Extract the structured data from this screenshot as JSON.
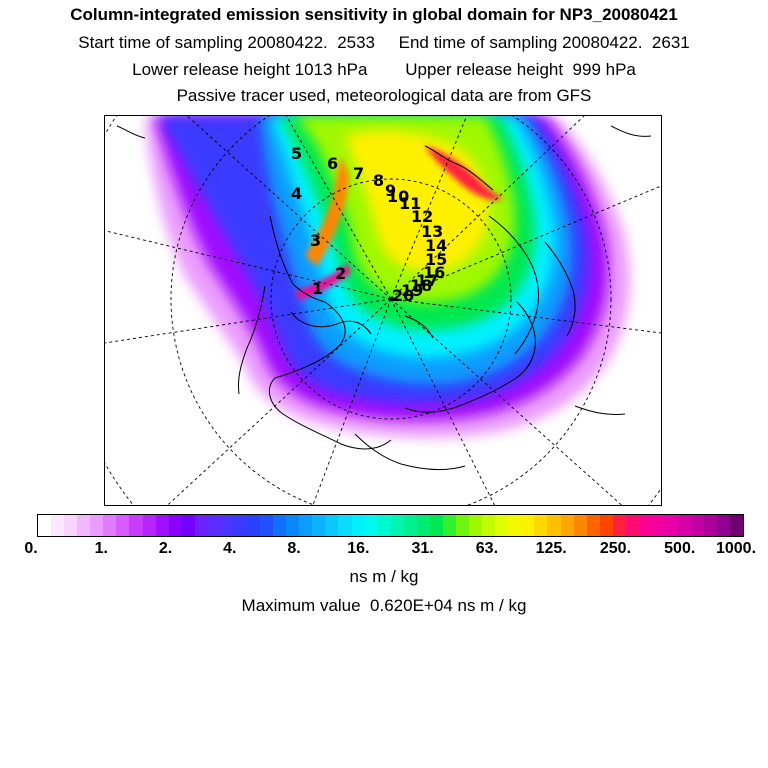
{
  "title": "Column-integrated emission sensitivity in global domain for NP3_20080421",
  "sampling": {
    "start_label": "Start time of sampling",
    "start_value": "20080422.  2533",
    "end_label": "End time of sampling",
    "end_value": "20080422.  2631"
  },
  "release": {
    "lower_label": "Lower release height",
    "lower_value": "1013 hPa",
    "upper_label": "Upper release height",
    "upper_value": "999 hPa"
  },
  "tracer_note": "Passive tracer used, meteorological data are from GFS",
  "colorbar": {
    "tick_labels": [
      "0.",
      "1.",
      "2.",
      "4.",
      "8.",
      "16.",
      "31.",
      "63.",
      "125.",
      "250.",
      "500.",
      "1000."
    ],
    "colors": [
      "#ffffff",
      "#fce8ff",
      "#f8d4ff",
      "#f2b8ff",
      "#eb9cff",
      "#e27cff",
      "#d85cff",
      "#c93cff",
      "#b824ff",
      "#a010ff",
      "#8a00ff",
      "#7400ff",
      "#6a20ff",
      "#5a2cff",
      "#4a34ff",
      "#3a3aff",
      "#2a40ff",
      "#2050ff",
      "#1070ff",
      "#0a86ff",
      "#0a9cff",
      "#0ab2ff",
      "#0ac8ff",
      "#0adcff",
      "#00f0ff",
      "#00f8ee",
      "#00f8d0",
      "#00f4b0",
      "#00f090",
      "#00ec70",
      "#00e850",
      "#30f030",
      "#70f410",
      "#a0f800",
      "#c4fa00",
      "#e0fc00",
      "#f2f800",
      "#fff000",
      "#ffd800",
      "#ffc000",
      "#ffa400",
      "#ff8600",
      "#ff6400",
      "#ff4400",
      "#ff2040",
      "#ff0a70",
      "#ff0090",
      "#f400a0",
      "#e800a8",
      "#d800a8",
      "#c400a4",
      "#ac009c",
      "#900090",
      "#700070"
    ]
  },
  "units": "ns m / kg",
  "max_value": {
    "label": "Maximum value",
    "value": "0.620E+04 ns m / kg"
  },
  "trajectory_labels": [
    "1",
    "2",
    "3",
    "4",
    "5",
    "6",
    "7",
    "8",
    "9",
    "10",
    "11",
    "12",
    "13",
    "14",
    "15",
    "16",
    "17",
    "18",
    "19",
    "20"
  ]
}
